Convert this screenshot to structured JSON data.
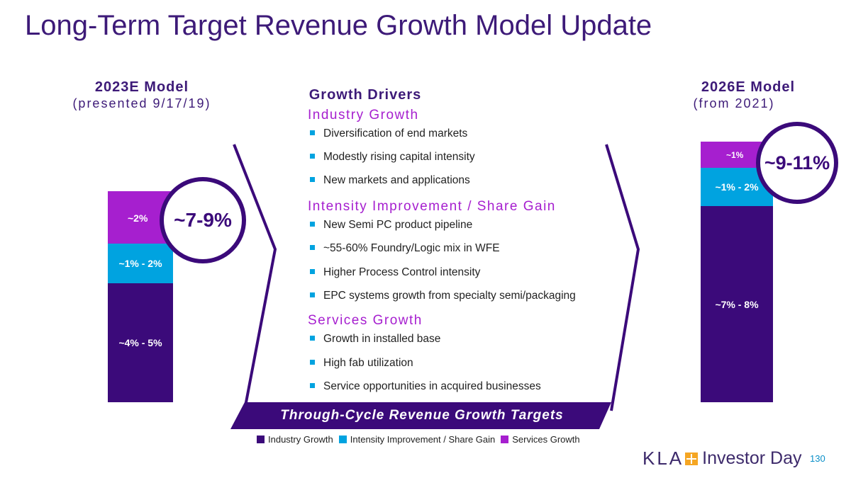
{
  "title": "Long-Term Target Revenue Growth Model Update",
  "left": {
    "heading": "2023E Model",
    "sub": "(presented 9/17/19)"
  },
  "right": {
    "heading": "2026E Model",
    "sub": "(from 2021)"
  },
  "middle": {
    "heading": "Growth Drivers",
    "sections": [
      {
        "title": "Industry Growth",
        "bullets": [
          "Diversification of end markets",
          "Modestly rising capital intensity",
          "New markets and applications"
        ]
      },
      {
        "title": "Intensity Improvement / Share Gain",
        "bullets": [
          "New Semi PC product pipeline",
          "~55-60% Foundry/Logic mix in WFE",
          "Higher Process Control intensity",
          "EPC systems growth from specialty semi/packaging"
        ]
      },
      {
        "title": "Services Growth",
        "bullets": [
          "Growth in installed base",
          "High fab utilization",
          "Service opportunities in acquired businesses"
        ]
      }
    ]
  },
  "banner": "Through-Cycle Revenue Growth Targets",
  "chart_data": {
    "type": "bar",
    "stacked": true,
    "categories": [
      "2023E Model",
      "2026E Model"
    ],
    "series": [
      {
        "name": "Industry Growth",
        "color": "#3b0a7a",
        "labels": [
          "~4% - 5%",
          "~7% - 8%"
        ],
        "values": [
          4.5,
          7.5
        ]
      },
      {
        "name": "Intensity Improvement / Share Gain",
        "color": "#00a3e0",
        "labels": [
          "~1% - 2%",
          "~1% - 2%"
        ],
        "values": [
          1.5,
          1.5
        ]
      },
      {
        "name": "Services Growth",
        "color": "#a61fcf",
        "labels": [
          "~2%",
          "~1%"
        ],
        "values": [
          2,
          1
        ]
      }
    ],
    "totals": [
      "~7-9%",
      "~9-11%"
    ],
    "legend": "bottom"
  },
  "logo": {
    "brand": "KLA",
    "event": "Investor Day"
  },
  "page_number": "130"
}
